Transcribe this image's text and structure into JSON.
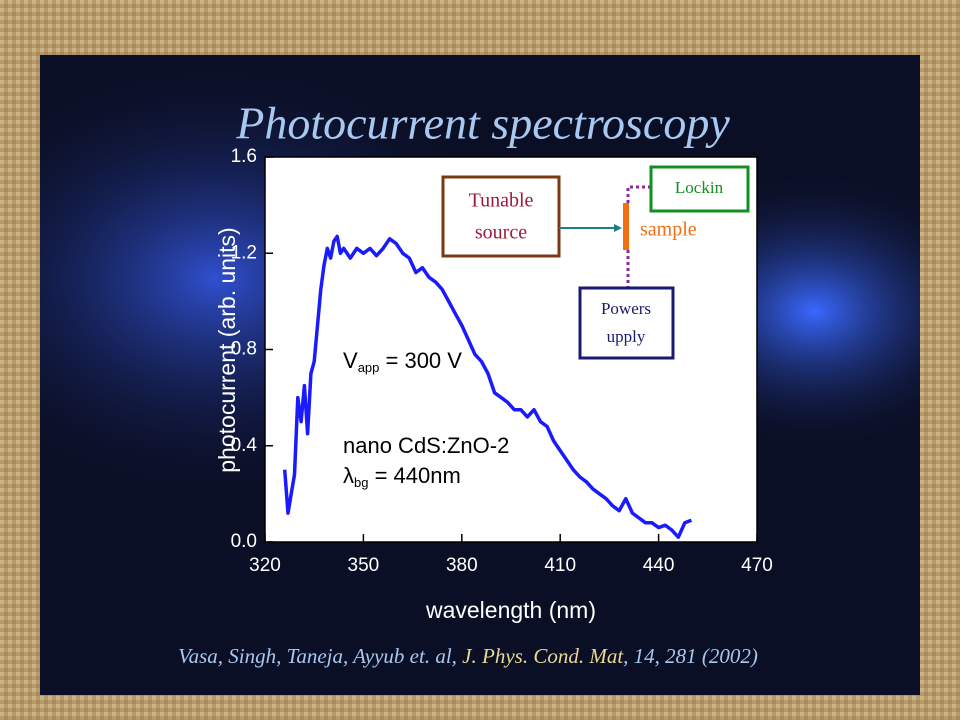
{
  "title": "Photocurrent spectroscopy",
  "citation": [
    "Vasa, Singh, Taneja, Ayyub et. al, ",
    "J. Phys. Cond. Mat",
    ", 14, 281 (2002)"
  ],
  "chart_data": {
    "type": "line",
    "xlabel": "wavelength (nm)",
    "ylabel": "photocurrent (arb. units)",
    "color": "#1a1aff",
    "x": [
      326,
      327,
      328,
      329,
      330,
      331,
      332,
      333,
      334,
      335,
      336,
      337,
      338,
      339,
      340,
      341,
      342,
      343,
      344,
      346,
      348,
      350,
      352,
      354,
      356,
      358,
      360,
      362,
      364,
      366,
      368,
      370,
      372,
      374,
      376,
      378,
      380,
      382,
      384,
      386,
      388,
      390,
      392,
      394,
      396,
      398,
      400,
      402,
      404,
      406,
      408,
      410,
      412,
      414,
      416,
      418,
      420,
      422,
      424,
      426,
      428,
      430,
      432,
      434,
      436,
      438,
      440,
      442,
      444,
      446,
      448,
      450
    ],
    "values": [
      0.3,
      0.12,
      0.2,
      0.28,
      0.6,
      0.5,
      0.65,
      0.45,
      0.7,
      0.75,
      0.9,
      1.05,
      1.15,
      1.22,
      1.18,
      1.25,
      1.27,
      1.2,
      1.22,
      1.18,
      1.22,
      1.2,
      1.22,
      1.19,
      1.22,
      1.26,
      1.24,
      1.2,
      1.18,
      1.12,
      1.14,
      1.1,
      1.08,
      1.05,
      1.0,
      0.95,
      0.9,
      0.84,
      0.78,
      0.75,
      0.7,
      0.62,
      0.6,
      0.58,
      0.55,
      0.55,
      0.52,
      0.55,
      0.5,
      0.48,
      0.42,
      0.38,
      0.34,
      0.3,
      0.27,
      0.25,
      0.22,
      0.2,
      0.18,
      0.15,
      0.13,
      0.18,
      0.12,
      0.1,
      0.08,
      0.08,
      0.06,
      0.07,
      0.05,
      0.02,
      0.08,
      0.09
    ],
    "xlim": [
      320,
      470
    ],
    "xticks": [
      320,
      350,
      380,
      410,
      440,
      470
    ],
    "ylim": [
      0,
      1.6
    ],
    "yticks": [
      {
        "value": 0,
        "label": "0.0"
      },
      0.4,
      0.8,
      1.2,
      1.6
    ],
    "annotations": [
      {
        "main": "V",
        "sub": "app",
        "rest": " = 300 V"
      },
      {
        "main": "nano CdS:ZnO-2"
      },
      {
        "main": "λ",
        "sub": "bg",
        "rest": " = 440nm"
      }
    ]
  },
  "diagram": {
    "source": [
      "Tunable",
      "source"
    ],
    "sample": "sample",
    "lockin": "Lockin",
    "power": [
      "Powers",
      "upply"
    ]
  }
}
